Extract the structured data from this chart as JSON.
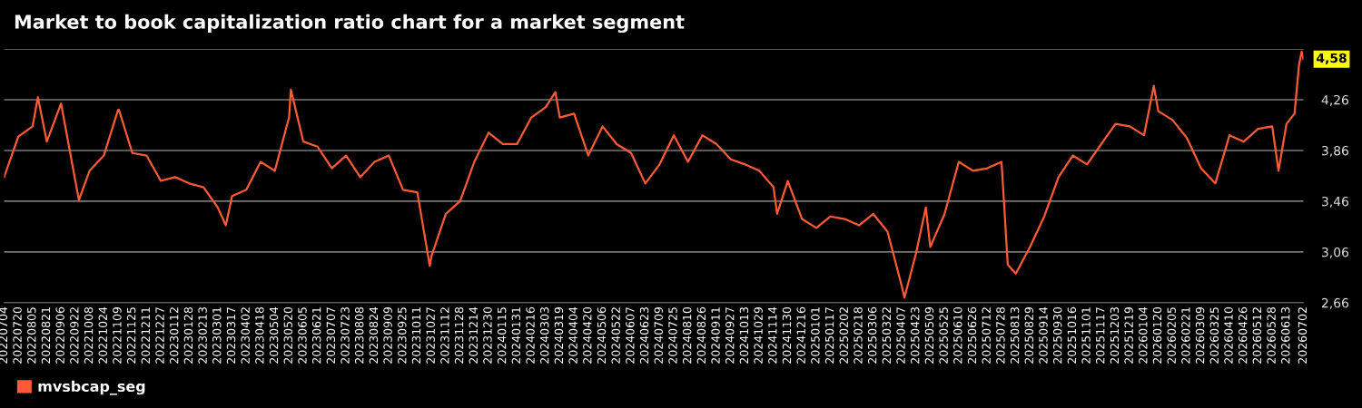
{
  "chart_data": {
    "type": "line",
    "title": "Market to book capitalization ratio chart for a market segment",
    "x": [
      "2022-07-04",
      "2022-07-20",
      "2022-08-05",
      "2022-08-11",
      "2022-08-21",
      "2022-09-06",
      "2022-09-22",
      "2022-09-26",
      "2022-10-08",
      "2022-10-24",
      "2022-11-09",
      "2022-11-10",
      "2022-11-25",
      "2022-12-11",
      "2022-12-27",
      "2023-01-12",
      "2023-01-28",
      "2023-02-13",
      "2023-03-01",
      "2023-03-10",
      "2023-03-17",
      "2023-04-02",
      "2023-04-18",
      "2023-05-04",
      "2023-05-20",
      "2023-05-22",
      "2023-06-05",
      "2023-06-21",
      "2023-07-07",
      "2023-07-23",
      "2023-08-08",
      "2023-08-24",
      "2023-09-09",
      "2023-09-25",
      "2023-10-11",
      "2023-10-25",
      "2023-10-27",
      "2023-11-12",
      "2023-11-28",
      "2023-12-14",
      "2023-12-30",
      "2024-01-15",
      "2024-01-31",
      "2024-02-16",
      "2024-03-03",
      "2024-03-14",
      "2024-03-19",
      "2024-04-04",
      "2024-04-20",
      "2024-05-06",
      "2024-05-22",
      "2024-06-07",
      "2024-06-23",
      "2024-07-09",
      "2024-07-25",
      "2024-08-10",
      "2024-08-26",
      "2024-09-11",
      "2024-09-27",
      "2024-10-13",
      "2024-10-29",
      "2024-11-14",
      "2024-11-18",
      "2024-11-30",
      "2024-12-16",
      "2025-01-01",
      "2025-01-17",
      "2025-02-02",
      "2025-02-18",
      "2025-03-06",
      "2025-03-22",
      "2025-04-07",
      "2025-04-10",
      "2025-04-23",
      "2025-05-04",
      "2025-05-09",
      "2025-05-25",
      "2025-06-10",
      "2025-06-26",
      "2025-07-12",
      "2025-07-28",
      "2025-08-04",
      "2025-08-13",
      "2025-08-29",
      "2025-09-14",
      "2025-09-30",
      "2025-10-16",
      "2025-11-01",
      "2025-11-17",
      "2025-12-03",
      "2025-12-19",
      "2026-01-04",
      "2026-01-15",
      "2026-01-20",
      "2026-02-05",
      "2026-02-21",
      "2026-03-09",
      "2026-03-25",
      "2026-04-10",
      "2026-04-26",
      "2026-05-12",
      "2026-05-28",
      "2026-06-04",
      "2026-06-13",
      "2026-06-22",
      "2026-06-27",
      "2026-06-30",
      "2026-07-02"
    ],
    "series": [
      {
        "name": "mvsbcap_seg",
        "color": "#ff5a36",
        "values": [
          3.65,
          3.97,
          4.05,
          4.28,
          3.93,
          4.23,
          3.62,
          3.47,
          3.7,
          3.82,
          4.18,
          4.18,
          3.84,
          3.82,
          3.62,
          3.65,
          3.6,
          3.57,
          3.41,
          3.27,
          3.5,
          3.55,
          3.77,
          3.7,
          4.12,
          4.34,
          3.93,
          3.89,
          3.72,
          3.82,
          3.65,
          3.77,
          3.82,
          3.55,
          3.53,
          2.95,
          3.03,
          3.36,
          3.46,
          3.77,
          4.0,
          3.91,
          3.91,
          4.12,
          4.2,
          4.32,
          4.12,
          4.15,
          3.82,
          4.05,
          3.91,
          3.84,
          3.6,
          3.75,
          3.98,
          3.77,
          3.98,
          3.91,
          3.79,
          3.75,
          3.7,
          3.57,
          3.36,
          3.62,
          3.32,
          3.25,
          3.34,
          3.32,
          3.27,
          3.36,
          3.22,
          2.79,
          2.7,
          3.05,
          3.41,
          3.1,
          3.36,
          3.77,
          3.7,
          3.72,
          3.77,
          2.96,
          2.89,
          3.1,
          3.34,
          3.65,
          3.82,
          3.75,
          3.91,
          4.07,
          4.05,
          3.98,
          4.37,
          4.17,
          4.1,
          3.96,
          3.72,
          3.6,
          3.98,
          3.93,
          4.03,
          4.05,
          3.7,
          4.07,
          4.15,
          4.53,
          4.64,
          4.58
        ]
      }
    ],
    "ylim": [
      2.66,
      4.66
    ],
    "yticks": [
      {
        "value": 2.66,
        "label": "2,66"
      },
      {
        "value": 3.06,
        "label": "3,06"
      },
      {
        "value": 3.46,
        "label": "3,46"
      },
      {
        "value": 3.86,
        "label": "3,86"
      },
      {
        "value": 4.26,
        "label": "4,26"
      },
      {
        "value": 4.66,
        "label": null
      }
    ],
    "xlim": [
      "2022-07-04",
      "2026-07-02"
    ],
    "xticks": [
      {
        "value": "2022-07-04",
        "label": "20220704"
      },
      {
        "value": "2022-07-20",
        "label": "20220720"
      },
      {
        "value": "2022-08-05",
        "label": "20220805"
      },
      {
        "value": "2022-08-21",
        "label": "20220821"
      },
      {
        "value": "2022-09-06",
        "label": "20220906"
      },
      {
        "value": "2022-09-22",
        "label": "20220922"
      },
      {
        "value": "2022-10-08",
        "label": "20221008"
      },
      {
        "value": "2022-10-24",
        "label": "20221024"
      },
      {
        "value": "2022-11-09",
        "label": "20221109"
      },
      {
        "value": "2022-11-25",
        "label": "20221125"
      },
      {
        "value": "2022-12-11",
        "label": "20221211"
      },
      {
        "value": "2022-12-27",
        "label": "20221227"
      },
      {
        "value": "2023-01-12",
        "label": "20230112"
      },
      {
        "value": "2023-01-28",
        "label": "20230128"
      },
      {
        "value": "2023-02-13",
        "label": "20230213"
      },
      {
        "value": "2023-03-01",
        "label": "20230301"
      },
      {
        "value": "2023-03-17",
        "label": "20230317"
      },
      {
        "value": "2023-04-02",
        "label": "20230402"
      },
      {
        "value": "2023-04-18",
        "label": "20230418"
      },
      {
        "value": "2023-05-04",
        "label": "20230504"
      },
      {
        "value": "2023-05-20",
        "label": "20230520"
      },
      {
        "value": "2023-06-05",
        "label": "20230605"
      },
      {
        "value": "2023-06-21",
        "label": "20230621"
      },
      {
        "value": "2023-07-07",
        "label": "20230707"
      },
      {
        "value": "2023-07-23",
        "label": "20230723"
      },
      {
        "value": "2023-08-08",
        "label": "20230808"
      },
      {
        "value": "2023-08-24",
        "label": "20230824"
      },
      {
        "value": "2023-09-09",
        "label": "20230909"
      },
      {
        "value": "2023-09-25",
        "label": "20230925"
      },
      {
        "value": "2023-10-11",
        "label": "20231011"
      },
      {
        "value": "2023-10-27",
        "label": "20231027"
      },
      {
        "value": "2023-11-12",
        "label": "20231112"
      },
      {
        "value": "2023-11-28",
        "label": "20231128"
      },
      {
        "value": "2023-12-14",
        "label": "20231214"
      },
      {
        "value": "2023-12-30",
        "label": "20231230"
      },
      {
        "value": "2024-01-15",
        "label": "20240115"
      },
      {
        "value": "2024-01-31",
        "label": "20240131"
      },
      {
        "value": "2024-02-16",
        "label": "20240216"
      },
      {
        "value": "2024-03-03",
        "label": "20240303"
      },
      {
        "value": "2024-03-19",
        "label": "20240319"
      },
      {
        "value": "2024-04-04",
        "label": "20240404"
      },
      {
        "value": "2024-04-20",
        "label": "20240420"
      },
      {
        "value": "2024-05-06",
        "label": "20240506"
      },
      {
        "value": "2024-05-22",
        "label": "20240522"
      },
      {
        "value": "2024-06-07",
        "label": "20240607"
      },
      {
        "value": "2024-06-23",
        "label": "20240623"
      },
      {
        "value": "2024-07-09",
        "label": "20240709"
      },
      {
        "value": "2024-07-25",
        "label": "20240725"
      },
      {
        "value": "2024-08-10",
        "label": "20240810"
      },
      {
        "value": "2024-08-26",
        "label": "20240826"
      },
      {
        "value": "2024-09-11",
        "label": "20240911"
      },
      {
        "value": "2024-09-27",
        "label": "20240927"
      },
      {
        "value": "2024-10-13",
        "label": "20241013"
      },
      {
        "value": "2024-10-29",
        "label": "20241029"
      },
      {
        "value": "2024-11-14",
        "label": "20241114"
      },
      {
        "value": "2024-11-30",
        "label": "20241130"
      },
      {
        "value": "2024-12-16",
        "label": "20241216"
      },
      {
        "value": "2025-01-01",
        "label": "20250101"
      },
      {
        "value": "2025-01-17",
        "label": "20250117"
      },
      {
        "value": "2025-02-02",
        "label": "20250202"
      },
      {
        "value": "2025-02-18",
        "label": "20250218"
      },
      {
        "value": "2025-03-06",
        "label": "20250306"
      },
      {
        "value": "2025-03-22",
        "label": "20250322"
      },
      {
        "value": "2025-04-07",
        "label": "20250407"
      },
      {
        "value": "2025-04-23",
        "label": "20250423"
      },
      {
        "value": "2025-05-09",
        "label": "20250509"
      },
      {
        "value": "2025-05-25",
        "label": "20250525"
      },
      {
        "value": "2025-06-10",
        "label": "20250610"
      },
      {
        "value": "2025-06-26",
        "label": "20250626"
      },
      {
        "value": "2025-07-12",
        "label": "20250712"
      },
      {
        "value": "2025-07-28",
        "label": "20250728"
      },
      {
        "value": "2025-08-13",
        "label": "20250813"
      },
      {
        "value": "2025-08-29",
        "label": "20250829"
      },
      {
        "value": "2025-09-14",
        "label": "20250914"
      },
      {
        "value": "2025-09-30",
        "label": "20250930"
      },
      {
        "value": "2025-10-16",
        "label": "20251016"
      },
      {
        "value": "2025-11-01",
        "label": "20251101"
      },
      {
        "value": "2025-11-17",
        "label": "20251117"
      },
      {
        "value": "2025-12-03",
        "label": "20251203"
      },
      {
        "value": "2025-12-19",
        "label": "20251219"
      },
      {
        "value": "2026-01-04",
        "label": "20260104"
      },
      {
        "value": "2026-01-20",
        "label": "20260120"
      },
      {
        "value": "2026-02-05",
        "label": "20260205"
      },
      {
        "value": "2026-02-21",
        "label": "20260221"
      },
      {
        "value": "2026-03-09",
        "label": "20260309"
      },
      {
        "value": "2026-03-25",
        "label": "20260325"
      },
      {
        "value": "2026-04-10",
        "label": "20260410"
      },
      {
        "value": "2026-04-26",
        "label": "20260426"
      },
      {
        "value": "2026-05-12",
        "label": "20260512"
      },
      {
        "value": "2026-05-28",
        "label": "20260528"
      },
      {
        "value": "2026-06-13",
        "label": "20260613"
      },
      {
        "value": "2026-07-02",
        "label": "20260702"
      }
    ],
    "annotations": [
      {
        "text": "4,58",
        "x": "2026-07-02",
        "y": 4.58
      }
    ],
    "grid": "y",
    "legend": "bottom left",
    "marker": "none",
    "line_style": "solid"
  }
}
